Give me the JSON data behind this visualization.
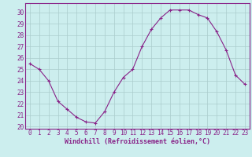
{
  "hours": [
    0,
    1,
    2,
    3,
    4,
    5,
    6,
    7,
    8,
    9,
    10,
    11,
    12,
    13,
    14,
    15,
    16,
    17,
    18,
    19,
    20,
    21,
    22,
    23
  ],
  "values": [
    25.5,
    25.0,
    24.0,
    22.2,
    21.5,
    20.8,
    20.4,
    20.3,
    21.3,
    23.0,
    24.3,
    25.0,
    27.0,
    28.5,
    29.5,
    30.2,
    30.2,
    30.2,
    29.8,
    29.5,
    28.3,
    26.7,
    24.5,
    23.7
  ],
  "line_color": "#882288",
  "marker": "+",
  "marker_size": 3,
  "background_color": "#cceeee",
  "grid_color": "#aacccc",
  "xlabel": "Windchill (Refroidissement éolien,°C)",
  "xlabel_color": "#882288",
  "ylabel_ticks": [
    20,
    21,
    22,
    23,
    24,
    25,
    26,
    27,
    28,
    29,
    30
  ],
  "ylim": [
    19.8,
    30.8
  ],
  "xlim": [
    -0.5,
    23.5
  ],
  "tick_color": "#882288",
  "spine_color": "#882288",
  "tick_fontsize": 5.5,
  "xlabel_fontsize": 6.0
}
